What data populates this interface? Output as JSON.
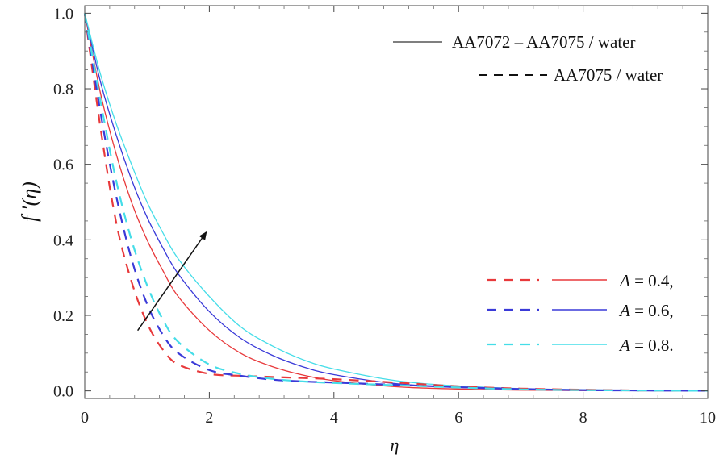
{
  "chart_data": {
    "type": "line",
    "title": "",
    "xlabel": "η",
    "ylabel": "f ′(η)",
    "xlim": [
      0,
      10
    ],
    "ylim": [
      -0.02,
      1.02
    ],
    "x_ticks": [
      "0",
      "2",
      "4",
      "6",
      "8",
      "10"
    ],
    "y_ticks": [
      "0.0",
      "0.2",
      "0.4",
      "0.6",
      "0.8",
      "1.0"
    ],
    "grid": false,
    "legend_position": "top-right and bottom-right",
    "style_legend": [
      {
        "label": "AA7072 – AA7075 / water",
        "style": "solid"
      },
      {
        "label": "AA7075 / water",
        "style": "dashed"
      }
    ],
    "parameter_legend": [
      {
        "label_var": "A",
        "label_rest": " = 0.4,",
        "color": "#e8393b"
      },
      {
        "label_var": "A",
        "label_rest": " = 0.6,",
        "color": "#3a3ad8"
      },
      {
        "label_var": "A",
        "label_rest": " = 0.8.",
        "color": "#45dde8"
      }
    ],
    "annotation": {
      "type": "arrow",
      "from": [
        0.85,
        0.16
      ],
      "to": [
        1.95,
        0.42
      ],
      "meaning": "increasing A"
    },
    "x": [
      0,
      0.25,
      0.5,
      0.75,
      1,
      1.25,
      1.5,
      2,
      2.5,
      3,
      3.5,
      4,
      5,
      6,
      7,
      8,
      9,
      10
    ],
    "series": [
      {
        "color": "#e8393b",
        "style": "solid",
        "group": "hybrid",
        "param": "A = 0.4",
        "values": [
          1.0,
          0.79,
          0.63,
          0.5,
          0.4,
          0.32,
          0.25,
          0.16,
          0.1,
          0.065,
          0.042,
          0.027,
          0.011,
          0.005,
          0.002,
          0.001,
          0.0005,
          0.0002
        ]
      },
      {
        "color": "#3a3ad8",
        "style": "solid",
        "group": "hybrid",
        "param": "A = 0.6",
        "values": [
          1.0,
          0.82,
          0.68,
          0.56,
          0.46,
          0.38,
          0.31,
          0.21,
          0.14,
          0.095,
          0.064,
          0.043,
          0.019,
          0.009,
          0.004,
          0.002,
          0.001,
          0.0005
        ]
      },
      {
        "color": "#45dde8",
        "style": "solid",
        "group": "hybrid",
        "param": "A = 0.8",
        "values": [
          1.0,
          0.84,
          0.71,
          0.6,
          0.5,
          0.42,
          0.35,
          0.25,
          0.17,
          0.12,
          0.083,
          0.058,
          0.027,
          0.013,
          0.006,
          0.003,
          0.0014,
          0.0006
        ]
      },
      {
        "color": "#e8393b",
        "style": "dashed",
        "group": "mono",
        "param": "A = 0.4",
        "values": [
          1.0,
          0.7,
          0.45,
          0.29,
          0.18,
          0.11,
          0.07,
          0.045,
          0.04,
          0.037,
          0.034,
          0.031,
          0.022,
          0.012,
          0.006,
          0.003,
          0.001,
          0.0005
        ]
      },
      {
        "color": "#3a3ad8",
        "style": "dashed",
        "group": "mono",
        "param": "A = 0.6",
        "values": [
          1.0,
          0.74,
          0.52,
          0.35,
          0.23,
          0.15,
          0.1,
          0.055,
          0.04,
          0.03,
          0.025,
          0.022,
          0.016,
          0.01,
          0.005,
          0.002,
          0.001,
          0.0004
        ]
      },
      {
        "color": "#45dde8",
        "style": "dashed",
        "group": "mono",
        "param": "A = 0.8",
        "values": [
          1.0,
          0.77,
          0.56,
          0.4,
          0.28,
          0.19,
          0.13,
          0.07,
          0.045,
          0.032,
          0.025,
          0.021,
          0.015,
          0.009,
          0.004,
          0.002,
          0.001,
          0.0004
        ]
      }
    ]
  }
}
